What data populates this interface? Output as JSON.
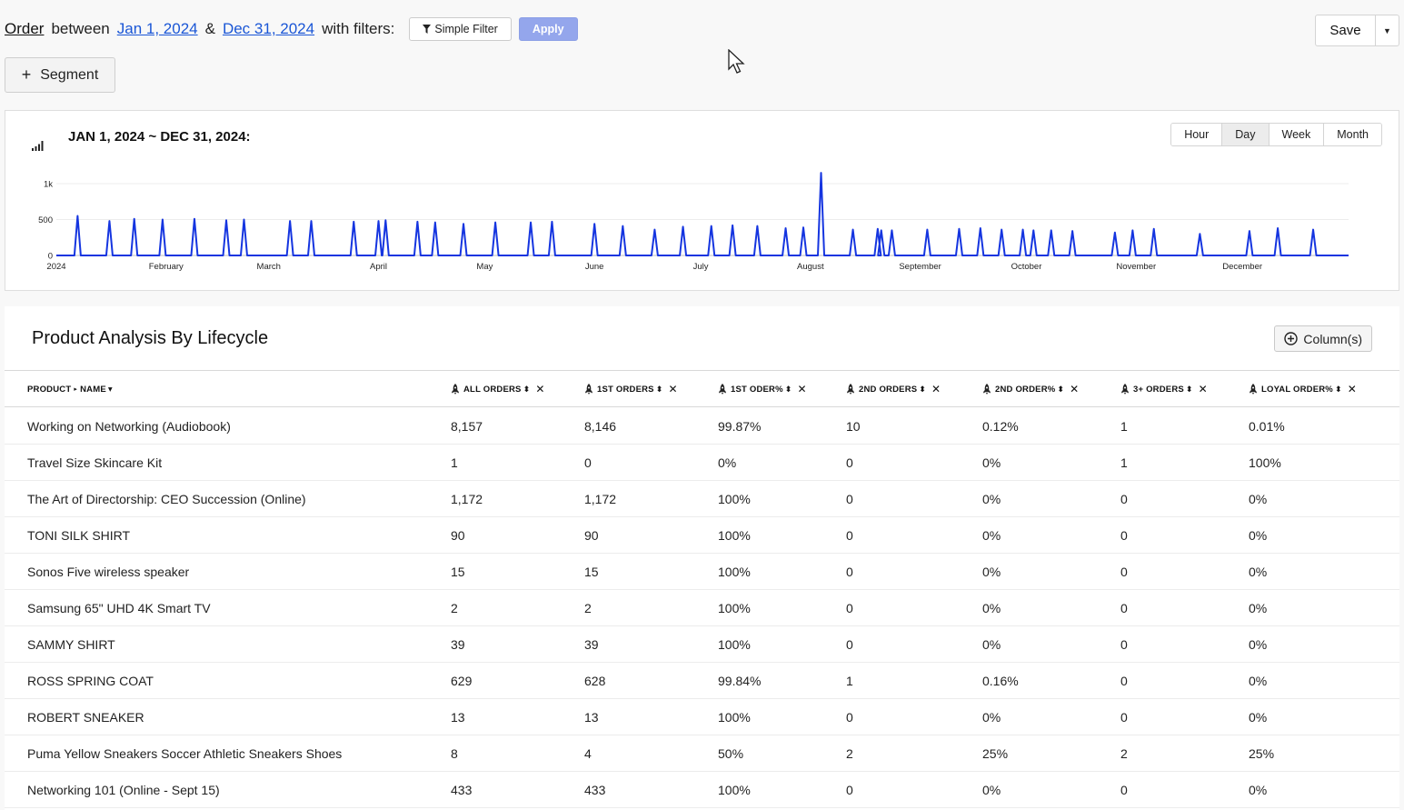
{
  "query": {
    "entity": "Order",
    "between": "between",
    "start_date": "Jan 1, 2024",
    "amp": "&",
    "end_date": "Dec 31, 2024",
    "with_filters": "with filters:",
    "filter_button": "Simple Filter",
    "apply_button": "Apply"
  },
  "save": {
    "label": "Save",
    "caret": "▼"
  },
  "segment": {
    "label": "Segment",
    "plus": "+"
  },
  "chart": {
    "title": "JAN 1, 2024 ~ DEC 31, 2024:",
    "granularity": [
      "Hour",
      "Day",
      "Week",
      "Month"
    ],
    "active_granularity": "Day"
  },
  "chart_data": {
    "type": "line",
    "title": "JAN 1, 2024 ~ DEC 31, 2024:",
    "xlabel": "",
    "ylabel": "",
    "ylim": [
      0,
      1000
    ],
    "yticks": [
      "0",
      "500",
      "1k"
    ],
    "xticks": [
      "2024",
      "February",
      "March",
      "April",
      "May",
      "June",
      "July",
      "August",
      "September",
      "October",
      "November",
      "December"
    ],
    "grid": true,
    "color": "#1535e0",
    "series": [
      {
        "x_days": [
          6,
          15,
          22,
          30,
          39,
          48,
          53,
          66,
          72,
          84,
          91,
          93,
          102,
          107,
          115,
          124,
          134,
          140,
          152,
          160,
          169,
          177,
          185,
          191,
          198,
          206,
          211,
          216,
          225,
          232,
          233,
          236,
          246,
          255,
          261,
          267,
          273,
          276,
          281,
          287,
          299,
          304,
          310,
          323,
          337,
          345,
          355
        ],
        "values": [
          550,
          480,
          510,
          500,
          510,
          490,
          500,
          480,
          480,
          470,
          480,
          490,
          470,
          460,
          440,
          460,
          460,
          470,
          440,
          410,
          360,
          400,
          410,
          420,
          410,
          380,
          390,
          1150,
          360,
          370,
          350,
          350,
          360,
          370,
          380,
          360,
          360,
          350,
          350,
          340,
          320,
          350,
          370,
          300,
          340,
          380,
          360
        ]
      }
    ]
  },
  "table": {
    "title": "Product Analysis By Lifecycle",
    "columns_button": "Column(s)",
    "headers": {
      "product": "PRODUCT",
      "product_arrow": "▸",
      "name": "NAME",
      "name_caret": "▾",
      "all_orders": "ALL ORDERS",
      "first_orders": "1ST ORDERS",
      "first_order_pct": "1ST ODER%",
      "second_orders": "2ND ORDERS",
      "second_order_pct": "2ND ORDER%",
      "third_plus_orders": "3+ ORDERS",
      "loyal_order_pct": "LOYAL ORDER%",
      "sort": "⬍",
      "remove": "✕"
    },
    "rows": [
      {
        "name": "Working on Networking (Audiobook)",
        "all": "8,157",
        "first": "8,146",
        "first_pct": "99.87%",
        "second": "10",
        "second_pct": "0.12%",
        "third": "1",
        "loyal": "0.01%"
      },
      {
        "name": "Travel Size Skincare Kit",
        "all": "1",
        "first": "0",
        "first_pct": "0%",
        "second": "0",
        "second_pct": "0%",
        "third": "1",
        "loyal": "100%"
      },
      {
        "name": "The Art of Directorship: CEO Succession (Online)",
        "all": "1,172",
        "first": "1,172",
        "first_pct": "100%",
        "second": "0",
        "second_pct": "0%",
        "third": "0",
        "loyal": "0%"
      },
      {
        "name": "TONI SILK SHIRT",
        "all": "90",
        "first": "90",
        "first_pct": "100%",
        "second": "0",
        "second_pct": "0%",
        "third": "0",
        "loyal": "0%"
      },
      {
        "name": "Sonos Five wireless speaker",
        "all": "15",
        "first": "15",
        "first_pct": "100%",
        "second": "0",
        "second_pct": "0%",
        "third": "0",
        "loyal": "0%"
      },
      {
        "name": "Samsung 65\" UHD 4K Smart TV",
        "all": "2",
        "first": "2",
        "first_pct": "100%",
        "second": "0",
        "second_pct": "0%",
        "third": "0",
        "loyal": "0%"
      },
      {
        "name": "SAMMY SHIRT",
        "all": "39",
        "first": "39",
        "first_pct": "100%",
        "second": "0",
        "second_pct": "0%",
        "third": "0",
        "loyal": "0%"
      },
      {
        "name": "ROSS SPRING COAT",
        "all": "629",
        "first": "628",
        "first_pct": "99.84%",
        "second": "1",
        "second_pct": "0.16%",
        "third": "0",
        "loyal": "0%"
      },
      {
        "name": "ROBERT SNEAKER",
        "all": "13",
        "first": "13",
        "first_pct": "100%",
        "second": "0",
        "second_pct": "0%",
        "third": "0",
        "loyal": "0%"
      },
      {
        "name": "Puma Yellow Sneakers Soccer Athletic Sneakers Shoes",
        "all": "8",
        "first": "4",
        "first_pct": "50%",
        "second": "2",
        "second_pct": "25%",
        "third": "2",
        "loyal": "25%"
      },
      {
        "name": "Networking 101 (Online - Sept 15)",
        "all": "433",
        "first": "433",
        "first_pct": "100%",
        "second": "0",
        "second_pct": "0%",
        "third": "0",
        "loyal": "0%"
      }
    ]
  }
}
